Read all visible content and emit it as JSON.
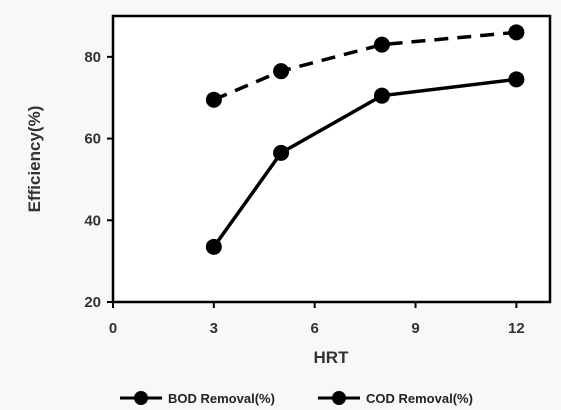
{
  "chart_data": {
    "type": "line",
    "title": "",
    "xlabel": "HRT",
    "ylabel": "Efficiency(%)",
    "xlim": [
      0,
      13
    ],
    "ylim": [
      20,
      90
    ],
    "xticks": [
      0,
      3,
      6,
      9,
      12
    ],
    "xtick_labels": [
      "0",
      "3",
      "6",
      "9",
      "12"
    ],
    "yticks": [
      20,
      40,
      60,
      80
    ],
    "ytick_labels": [
      "20",
      "40",
      "60",
      "80"
    ],
    "grid": false,
    "legend_position": "bottom",
    "series": [
      {
        "name": "BOD Removal(%)",
        "x": [
          3,
          5,
          8,
          12
        ],
        "y": [
          33.5,
          56.5,
          70.5,
          74.5
        ],
        "line_style": "solid",
        "color": "#000000"
      },
      {
        "name": "COD Removal(%)",
        "x": [
          3,
          5,
          8,
          12
        ],
        "y": [
          69.5,
          76.5,
          83,
          86
        ],
        "line_style": "dashed",
        "color": "#000000"
      }
    ]
  }
}
